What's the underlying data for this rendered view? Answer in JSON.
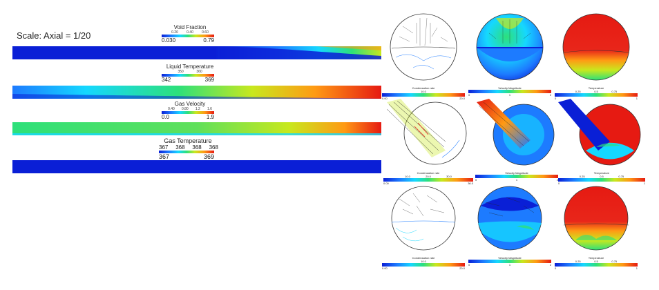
{
  "left": {
    "scale_label": "Scale: Axial = 1/20",
    "colorbars": [
      {
        "title": "Void Fraction",
        "ticks": [
          "0.20",
          "0.40",
          "0.60"
        ],
        "min": "0.030",
        "max": "0.79"
      },
      {
        "title": "Liquid Temperature",
        "ticks": [
          "350",
          "360"
        ],
        "min": "342",
        "max": "369"
      },
      {
        "title": "Gas Velocity",
        "ticks": [
          "0.40",
          "0.80",
          "1.2",
          "1.6"
        ],
        "min": "0.0",
        "max": "1.9"
      },
      {
        "title": "Gas Temperature",
        "ticks": [
          "367",
          "368",
          "368",
          "368"
        ],
        "min": "367",
        "max": "369"
      }
    ]
  },
  "right": {
    "rows": [
      {
        "panels": [
          {
            "label": "Condensation rate",
            "mid": "10.0",
            "min": "0.00",
            "max": "20.0"
          },
          {
            "label": "Velocity Magnitude",
            "mid": "1",
            "min": "0",
            "max": "2"
          },
          {
            "label": "Temperature",
            "mid": "0.5",
            "extra": [
              "0.25",
              "0.75"
            ],
            "min": "0",
            "max": "1"
          }
        ]
      },
      {
        "panels": [
          {
            "label": "Condensation rate",
            "mid": "20.0",
            "extra": [
              "10.0",
              "30.0"
            ],
            "min": "0.00",
            "max": "36.0"
          },
          {
            "label": "Velocity Magnitude",
            "mid": "1",
            "min": "0",
            "max": "2"
          },
          {
            "label": "Temperature",
            "mid": "0.5",
            "extra": [
              "0.25",
              "0.75"
            ],
            "min": "0",
            "max": "1"
          }
        ]
      },
      {
        "panels": [
          {
            "label": "Condensation rate",
            "mid": "10.0",
            "min": "0.00",
            "max": "20.0"
          },
          {
            "label": "Velocity Magnitude",
            "mid": "1",
            "min": "0",
            "max": "2"
          },
          {
            "label": "Temperature",
            "mid": "0.5",
            "extra": [
              "0.25",
              "0.75"
            ],
            "min": "0",
            "max": "1"
          }
        ]
      }
    ]
  },
  "colors": {
    "blue": "#0a1fd6",
    "cyan": "#15d8ff",
    "green": "#2de07a",
    "yellow": "#c8e81e",
    "orange": "#ff9a14",
    "red": "#e61a12"
  }
}
